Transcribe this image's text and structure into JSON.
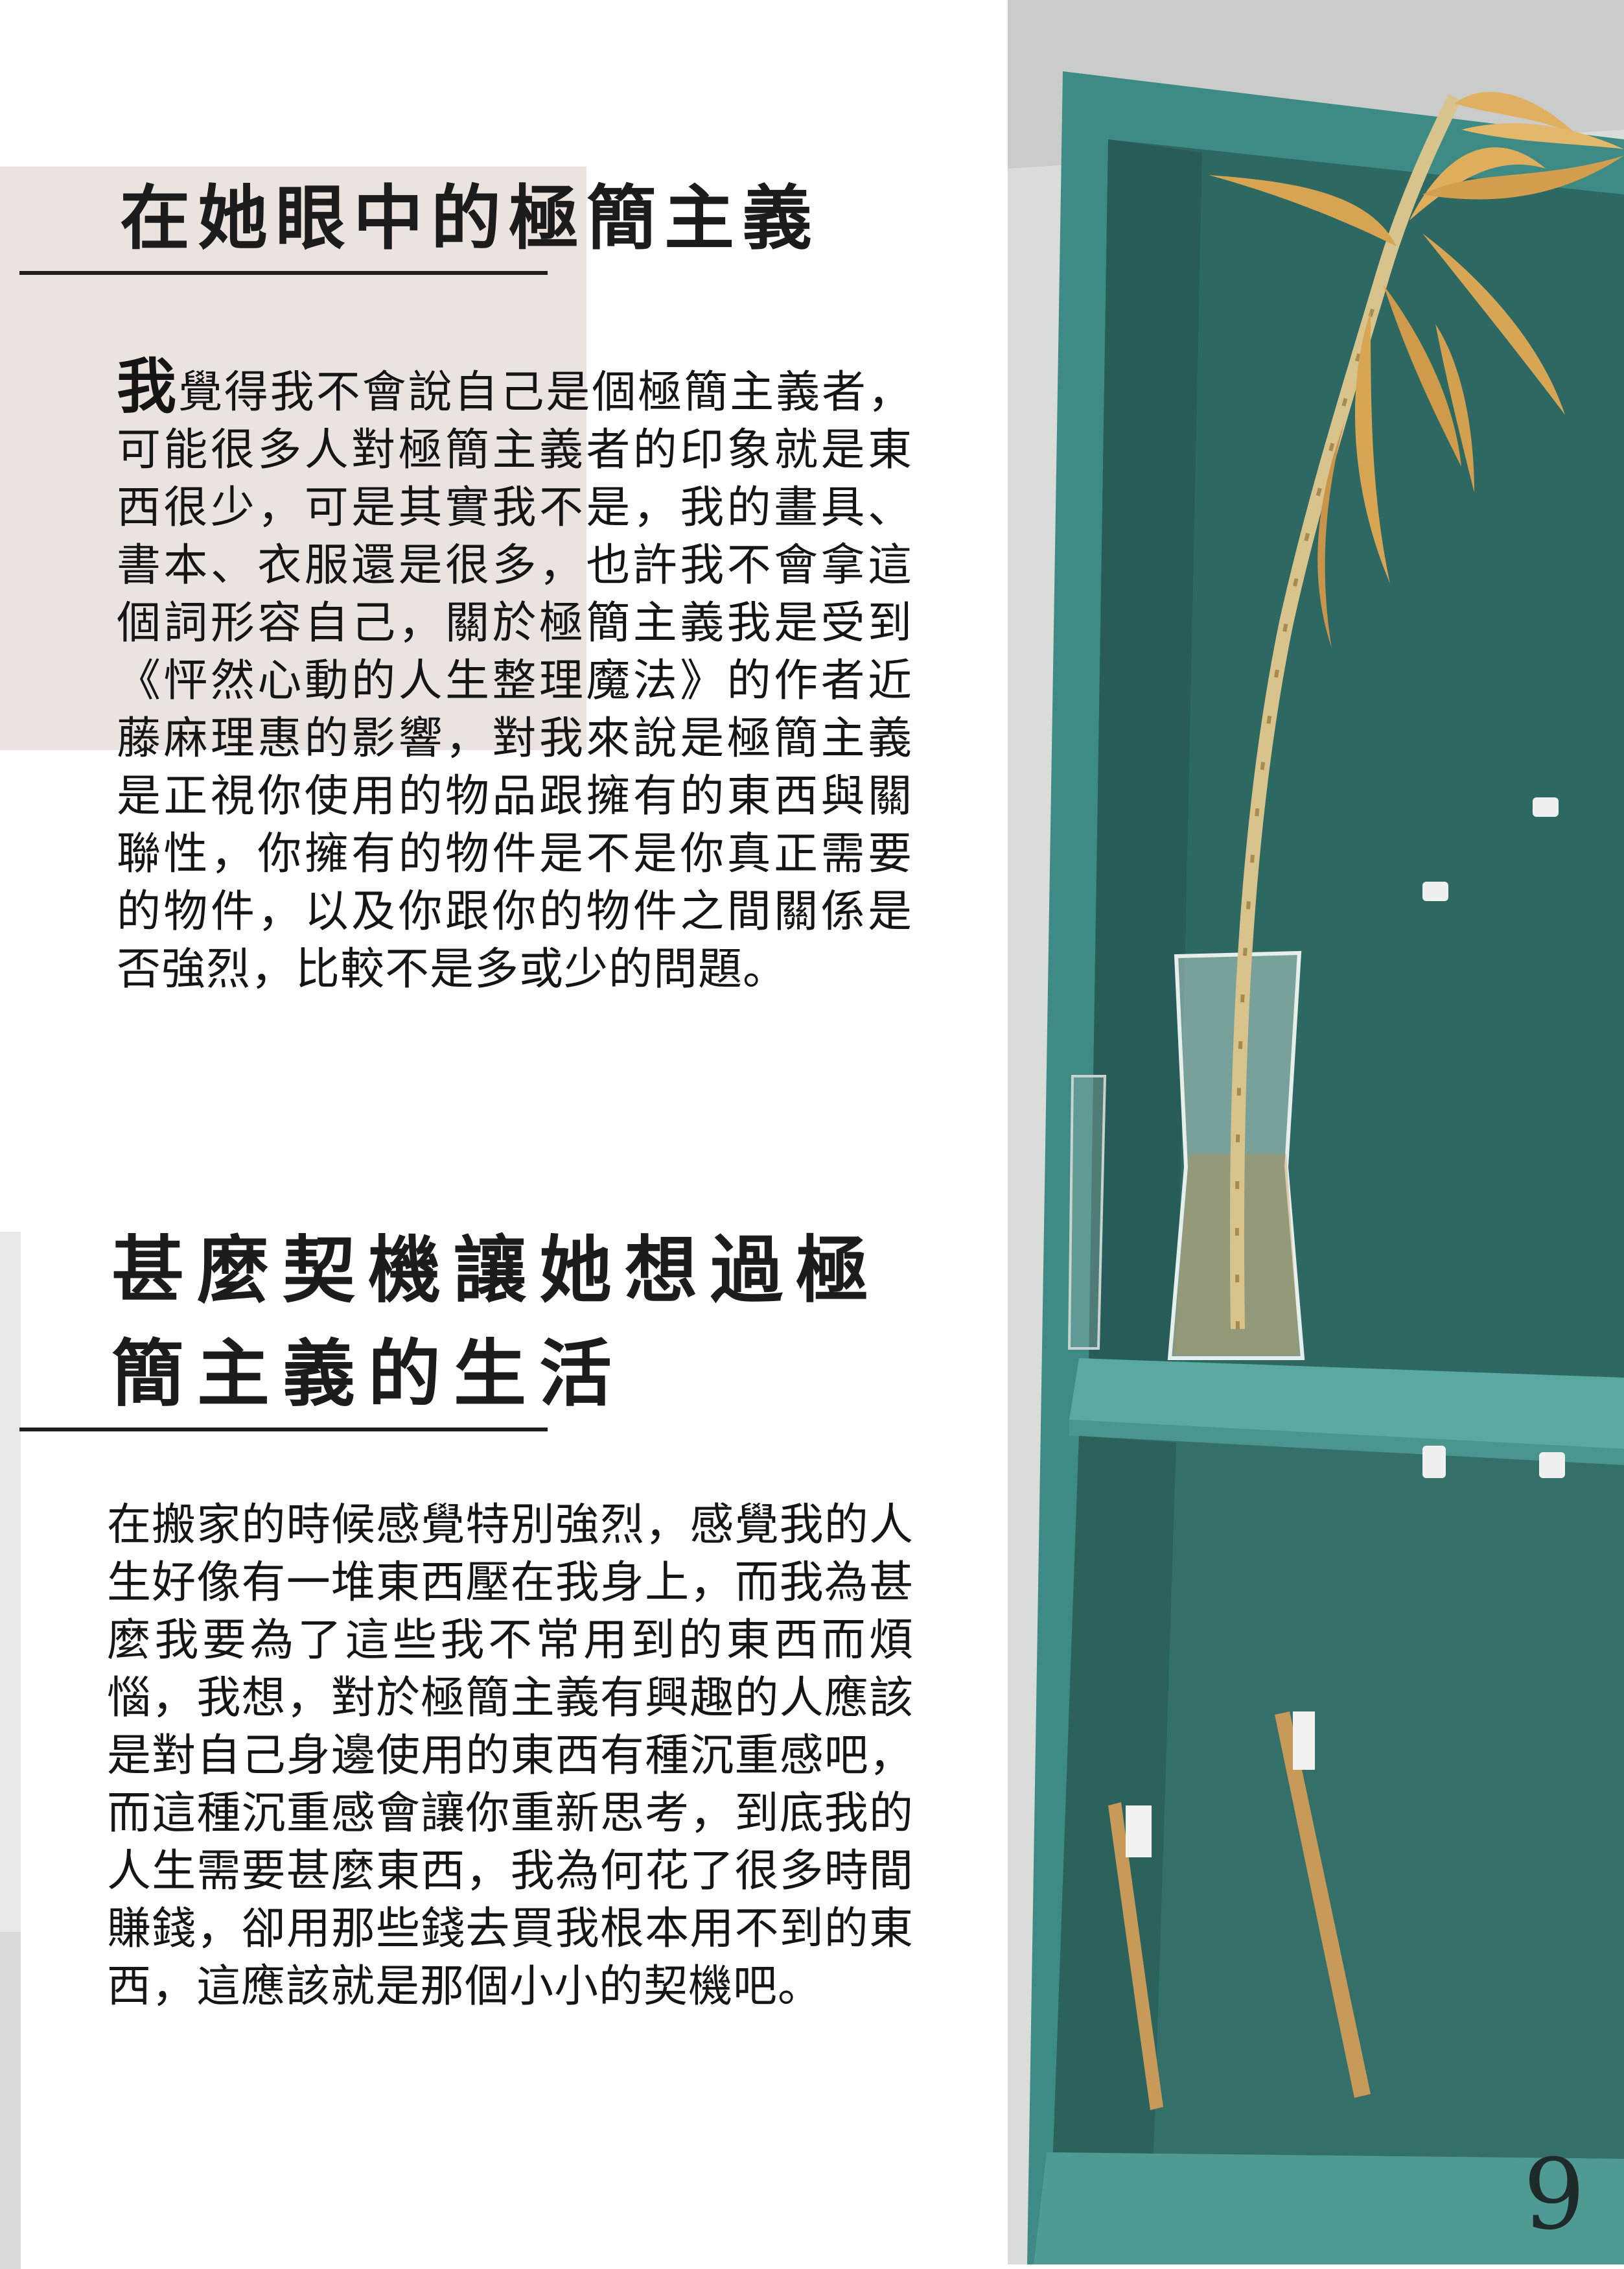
{
  "section1": {
    "title": "在她眼中的極簡主義",
    "first_char": "我",
    "body": "覺得我不會說自己是個極簡主義者，可能很多人對極簡主義者的印象就是東西很少，可是其實我不是，我的畫具、書本、衣服還是很多，也許我不會拿這個詞形容自己，關於極簡主義我是受到《怦然心動的人生整理魔法》的作者近藤麻理惠的影響，對我來說是極簡主義是正視你使用的物品跟擁有的東西與關聯性，你擁有的物件是不是你真正需要的物件，以及你跟你的物件之間關係是否強烈，比較不是多或少的問題。"
  },
  "section2": {
    "title": "甚麼契機讓她想過極簡主義的生活",
    "body": "在搬家的時候感覺特別強烈，感覺我的人生好像有一堆東西壓在我身上，而我為甚麼我要為了這些我不常用到的東西而煩惱，我想，對於極簡主義有興趣的人應該是對自己身邊使用的東西有種沉重感吧，而這種沉重感會讓你重新思考，到底我的人生需要甚麼東西，我為何花了很多時間賺錢，卻用那些錢去買我根本用不到的東西，這應該就是那個小小的契機吧。"
  },
  "page_number": "9",
  "colors": {
    "accent_block": "#ebe3df",
    "cabinet_teal": "#3f8a84",
    "text": "#151515"
  }
}
